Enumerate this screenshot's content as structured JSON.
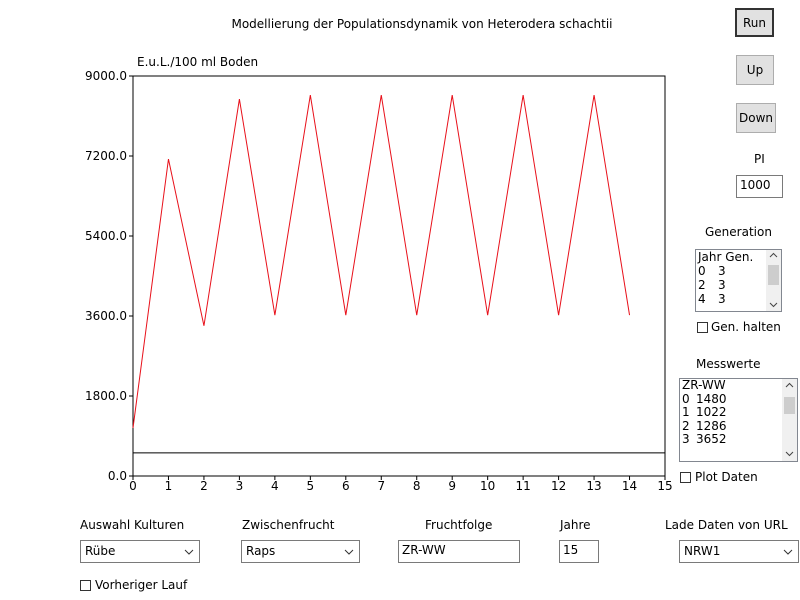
{
  "chart_data": {
    "type": "line",
    "title": "Modellierung der Populationsdynamik von Heterodera schachtii",
    "ylabel": "E.u.L./100 ml Boden",
    "x": [
      0,
      1,
      2,
      3,
      4,
      5,
      6,
      7,
      8,
      9,
      10,
      11,
      12,
      13,
      14
    ],
    "series": [
      {
        "color": "#e8101a",
        "values": [
          1080,
          7130,
          3380,
          8480,
          3620,
          8570,
          3620,
          8570,
          3620,
          8570,
          3620,
          8570,
          3620,
          8570,
          3620
        ]
      }
    ],
    "reference_line": 520,
    "xlim": [
      0,
      15
    ],
    "xticks": [
      0,
      1,
      2,
      3,
      4,
      5,
      6,
      7,
      8,
      9,
      10,
      11,
      12,
      13,
      14,
      15
    ],
    "ylim": [
      0,
      9000
    ],
    "yticks": [
      {
        "value": 0,
        "label": "0.0"
      },
      {
        "value": 1800,
        "label": "1800.0"
      },
      {
        "value": 3600,
        "label": "3600.0"
      },
      {
        "value": 5400,
        "label": "5400.0"
      },
      {
        "value": 7200,
        "label": "7200.0"
      },
      {
        "value": 9000,
        "label": "9000.0"
      }
    ]
  },
  "buttons": {
    "run": "Run",
    "up": "Up",
    "down": "Down"
  },
  "pi": {
    "label": "PI",
    "value": "1000"
  },
  "generation": {
    "label": "Generation",
    "header": "Jahr Gen.",
    "rows": [
      [
        "0",
        "3"
      ],
      [
        "2",
        "3"
      ],
      [
        "4",
        "3"
      ]
    ],
    "checkbox": "Gen. halten"
  },
  "messwerte": {
    "label": "Messwerte",
    "header": "ZR-WW",
    "rows": [
      [
        "0",
        "1480"
      ],
      [
        "1",
        "1022"
      ],
      [
        "2",
        "1286"
      ],
      [
        "3",
        "3652"
      ]
    ],
    "checkbox": "Plot Daten"
  },
  "controls": {
    "kulturen": {
      "label": "Auswahl Kulturen",
      "value": "Rübe"
    },
    "zwischenfrucht": {
      "label": "Zwischenfrucht",
      "value": "Raps"
    },
    "fruchtfolge": {
      "label": "Fruchtfolge",
      "value": "ZR-WW"
    },
    "jahre": {
      "label": "Jahre",
      "value": "15"
    },
    "url": {
      "label": "Lade Daten von URL",
      "value": "NRW1"
    },
    "vorheriger": "Vorheriger Lauf"
  }
}
